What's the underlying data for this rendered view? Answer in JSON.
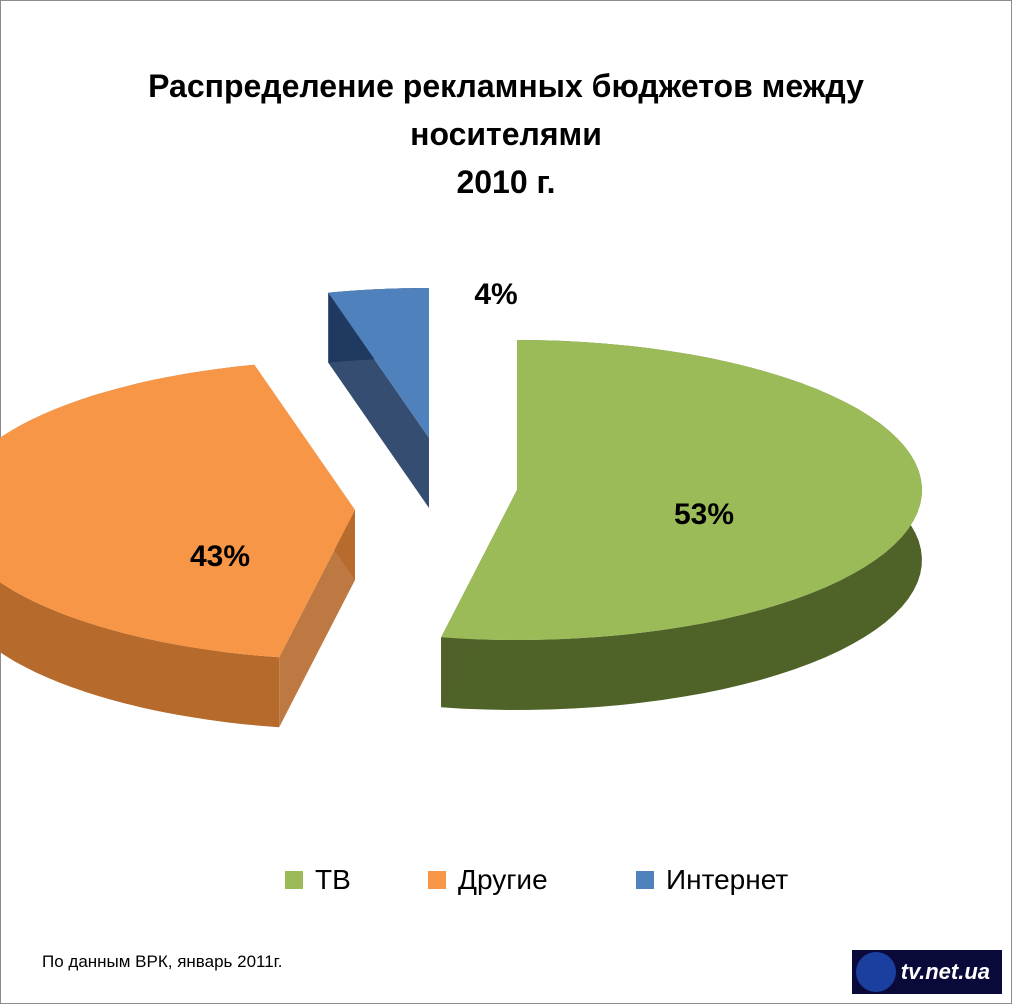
{
  "title": {
    "line1": "Распределение рекламных бюджетов между",
    "line2": "носителями",
    "line3": "2010 г."
  },
  "chart_data": {
    "type": "pie",
    "style": "3d-exploded",
    "slices": [
      {
        "label": "ТВ",
        "value": 53,
        "data_label": "53%",
        "color": "#9bbb59",
        "side_color": "#4f6228"
      },
      {
        "label": "Другие",
        "value": 43,
        "data_label": "43%",
        "color": "#f79646",
        "side_color": "#b66a2c"
      },
      {
        "label": "Интернет",
        "value": 4,
        "data_label": "4%",
        "color": "#4f81bd",
        "side_color": "#1f3a60"
      }
    ],
    "legend_position": "bottom"
  },
  "source": "По данным ВРК, январь 2011г.",
  "logo": {
    "text": "tv.net.ua",
    "icon": "tv-net-logo-icon"
  }
}
